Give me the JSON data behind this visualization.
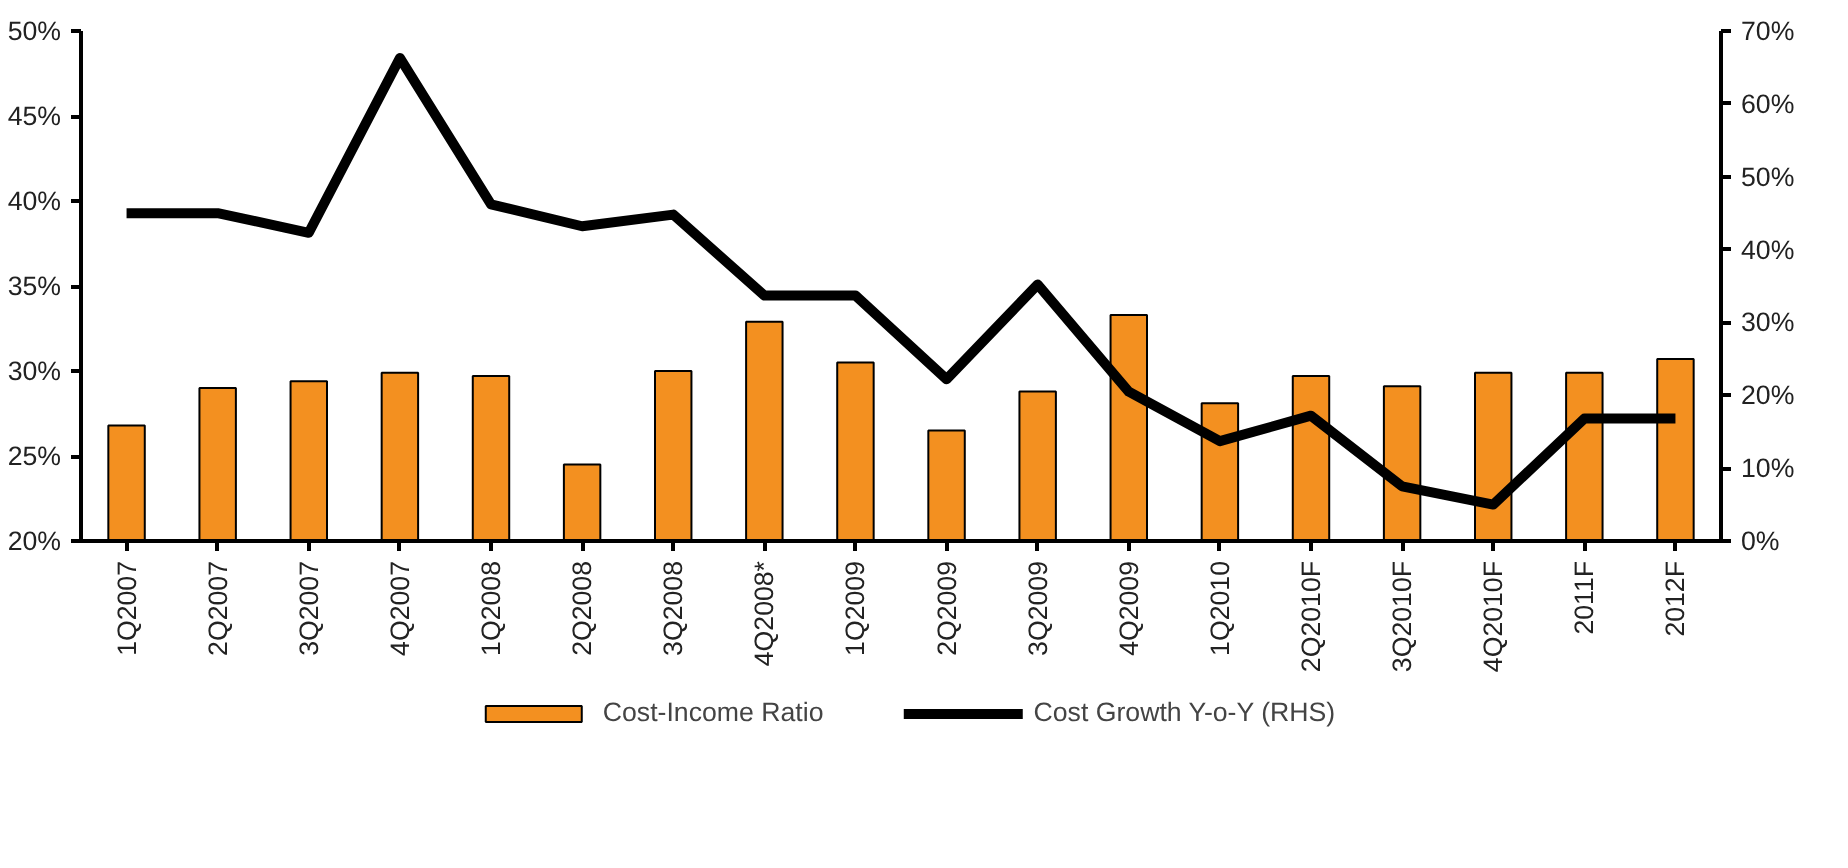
{
  "chart_data": {
    "type": "bar",
    "categories": [
      "1Q2007",
      "2Q2007",
      "3Q2007",
      "4Q2007",
      "1Q2008",
      "2Q2008",
      "3Q2008",
      "4Q2008*",
      "1Q2009",
      "2Q2009",
      "3Q2009",
      "4Q2009",
      "1Q2010",
      "2Q2010F",
      "3Q2010F",
      "4Q2010F",
      "2011F",
      "2012F"
    ],
    "series": [
      {
        "name": "Cost-Income Ratio",
        "color": "#f39020",
        "values": [
          26.8,
          29.0,
          29.4,
          29.9,
          29.7,
          24.5,
          30.0,
          32.9,
          30.5,
          26.5,
          28.8,
          33.3,
          28.1,
          29.7,
          29.1,
          29.9,
          29.9,
          30.7
        ]
      },
      {
        "name": "Cost Growth Y-o-Y (RHS)",
        "type": "line",
        "axis": "y2",
        "color": "#000000",
        "values": [
          45.0,
          45.0,
          42.3,
          66.3,
          46.2,
          43.2,
          44.8,
          33.7,
          33.7,
          22.2,
          35.2,
          20.5,
          13.7,
          17.2,
          7.5,
          5.0,
          16.8,
          16.8
        ]
      }
    ],
    "ylim": [
      20,
      50
    ],
    "yticks": [
      {
        "value": 20,
        "label": "20%"
      },
      {
        "value": 25,
        "label": "25%"
      },
      {
        "value": 30,
        "label": "30%"
      },
      {
        "value": 35,
        "label": "35%"
      },
      {
        "value": 40,
        "label": "40%"
      },
      {
        "value": 45,
        "label": "45%"
      },
      {
        "value": 50,
        "label": "50%"
      }
    ],
    "y2lim": [
      0,
      70
    ],
    "y2ticks": [
      {
        "value": 0,
        "label": "0%"
      },
      {
        "value": 10,
        "label": "10%"
      },
      {
        "value": 20,
        "label": "20%"
      },
      {
        "value": 30,
        "label": "30%"
      },
      {
        "value": 40,
        "label": "40%"
      },
      {
        "value": 50,
        "label": "50%"
      },
      {
        "value": 60,
        "label": "60%"
      },
      {
        "value": 70,
        "label": "70%"
      }
    ],
    "grid": false,
    "legend": "bottom",
    "line_style": "solid",
    "marker": "none"
  }
}
